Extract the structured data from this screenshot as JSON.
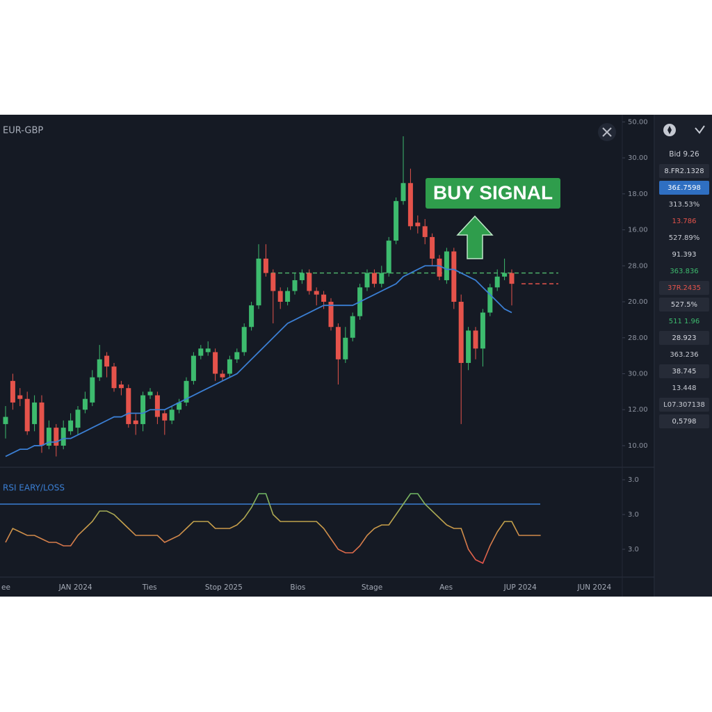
{
  "symbol": "EUR-GBP",
  "signal": "BUY SIGNAL",
  "price_chart": {
    "type": "candlestick",
    "up_color": "#3dbb6e",
    "down_color": "#e5534b",
    "ma_color": "#3b7fd4",
    "ylim": [
      -0.6,
      9.2
    ],
    "yticks": [
      {
        "value": 9,
        "label": "50.00"
      },
      {
        "value": 8,
        "label": "30.00"
      },
      {
        "value": 7,
        "label": "18.00"
      },
      {
        "value": 6,
        "label": "16.00"
      },
      {
        "value": 5,
        "label": "28.00"
      },
      {
        "value": 4,
        "label": "20.00"
      },
      {
        "value": 3,
        "label": "28.00"
      },
      {
        "value": 2,
        "label": "30.00"
      },
      {
        "value": 1,
        "label": "12.00"
      },
      {
        "value": 0,
        "label": "10.00"
      }
    ],
    "candles": [
      {
        "open": 0.6,
        "high": 1.1,
        "low": 0.2,
        "close": 0.8
      },
      {
        "open": 1.8,
        "high": 2.0,
        "low": 1.0,
        "close": 1.2
      },
      {
        "open": 1.4,
        "high": 1.6,
        "low": 1.1,
        "close": 1.3
      },
      {
        "open": 1.3,
        "high": 1.5,
        "low": 0.3,
        "close": 0.4
      },
      {
        "open": 0.6,
        "high": 1.4,
        "low": 0.4,
        "close": 1.2
      },
      {
        "open": 1.2,
        "high": 1.4,
        "low": -0.2,
        "close": 0.0
      },
      {
        "open": 0.0,
        "high": 0.7,
        "low": -0.1,
        "close": 0.5
      },
      {
        "open": 0.5,
        "high": 0.6,
        "low": -0.3,
        "close": 0.0
      },
      {
        "open": 0.0,
        "high": 0.7,
        "low": -0.1,
        "close": 0.5
      },
      {
        "open": 0.4,
        "high": 0.9,
        "low": 0.3,
        "close": 0.7
      },
      {
        "open": 0.5,
        "high": 1.1,
        "low": 0.3,
        "close": 1.0
      },
      {
        "open": 1.0,
        "high": 1.5,
        "low": 0.9,
        "close": 1.3
      },
      {
        "open": 1.2,
        "high": 2.1,
        "low": 1.1,
        "close": 1.9
      },
      {
        "open": 1.9,
        "high": 2.8,
        "low": 1.8,
        "close": 2.4
      },
      {
        "open": 2.5,
        "high": 2.6,
        "low": 1.9,
        "close": 2.2
      },
      {
        "open": 2.2,
        "high": 2.3,
        "low": 1.5,
        "close": 1.6
      },
      {
        "open": 1.7,
        "high": 1.8,
        "low": 1.4,
        "close": 1.6
      },
      {
        "open": 1.6,
        "high": 1.7,
        "low": 0.5,
        "close": 0.6
      },
      {
        "open": 0.7,
        "high": 0.9,
        "low": 0.3,
        "close": 0.6
      },
      {
        "open": 0.6,
        "high": 1.5,
        "low": 0.4,
        "close": 1.4
      },
      {
        "open": 1.4,
        "high": 1.6,
        "low": 1.3,
        "close": 1.5
      },
      {
        "open": 1.4,
        "high": 1.5,
        "low": 0.6,
        "close": 0.8
      },
      {
        "open": 0.9,
        "high": 1.0,
        "low": 0.3,
        "close": 0.7
      },
      {
        "open": 0.7,
        "high": 1.1,
        "low": 0.6,
        "close": 1.0
      },
      {
        "open": 1.0,
        "high": 1.3,
        "low": 0.9,
        "close": 1.2
      },
      {
        "open": 1.2,
        "high": 1.9,
        "low": 1.1,
        "close": 1.8
      },
      {
        "open": 1.8,
        "high": 2.6,
        "low": 1.7,
        "close": 2.5
      },
      {
        "open": 2.5,
        "high": 2.8,
        "low": 2.4,
        "close": 2.7
      },
      {
        "open": 2.6,
        "high": 2.9,
        "low": 2.5,
        "close": 2.7
      },
      {
        "open": 2.6,
        "high": 2.7,
        "low": 1.8,
        "close": 2.0
      },
      {
        "open": 2.0,
        "high": 2.1,
        "low": 1.8,
        "close": 1.9
      },
      {
        "open": 2.0,
        "high": 2.5,
        "low": 1.9,
        "close": 2.4
      },
      {
        "open": 2.4,
        "high": 2.7,
        "low": 2.3,
        "close": 2.6
      },
      {
        "open": 2.6,
        "high": 3.4,
        "low": 2.5,
        "close": 3.3
      },
      {
        "open": 3.3,
        "high": 4.0,
        "low": 3.2,
        "close": 3.9
      },
      {
        "open": 3.9,
        "high": 5.6,
        "low": 3.8,
        "close": 5.2
      },
      {
        "open": 5.2,
        "high": 5.6,
        "low": 4.7,
        "close": 4.8
      },
      {
        "open": 4.8,
        "high": 4.9,
        "low": 3.4,
        "close": 4.3
      },
      {
        "open": 4.3,
        "high": 4.4,
        "low": 3.8,
        "close": 4.0
      },
      {
        "open": 4.0,
        "high": 4.4,
        "low": 3.9,
        "close": 4.3
      },
      {
        "open": 4.3,
        "high": 4.8,
        "low": 4.2,
        "close": 4.6
      },
      {
        "open": 4.6,
        "high": 4.9,
        "low": 4.5,
        "close": 4.8
      },
      {
        "open": 4.8,
        "high": 4.9,
        "low": 4.2,
        "close": 4.3
      },
      {
        "open": 4.3,
        "high": 4.4,
        "low": 3.9,
        "close": 4.2
      },
      {
        "open": 4.2,
        "high": 4.3,
        "low": 3.8,
        "close": 4.0
      },
      {
        "open": 4.0,
        "high": 4.1,
        "low": 3.2,
        "close": 3.3
      },
      {
        "open": 3.3,
        "high": 3.4,
        "low": 1.7,
        "close": 2.4
      },
      {
        "open": 2.4,
        "high": 3.3,
        "low": 2.3,
        "close": 3.0
      },
      {
        "open": 3.0,
        "high": 3.7,
        "low": 2.9,
        "close": 3.6
      },
      {
        "open": 3.6,
        "high": 4.5,
        "low": 3.5,
        "close": 4.4
      },
      {
        "open": 4.4,
        "high": 4.9,
        "low": 4.3,
        "close": 4.8
      },
      {
        "open": 4.8,
        "high": 4.9,
        "low": 4.4,
        "close": 4.5
      },
      {
        "open": 4.5,
        "high": 5.0,
        "low": 4.4,
        "close": 4.8
      },
      {
        "open": 4.8,
        "high": 5.8,
        "low": 4.7,
        "close": 5.7
      },
      {
        "open": 5.7,
        "high": 6.9,
        "low": 5.6,
        "close": 6.8
      },
      {
        "open": 6.8,
        "high": 8.6,
        "low": 6.7,
        "close": 7.3
      },
      {
        "open": 7.3,
        "high": 7.7,
        "low": 6.0,
        "close": 6.1
      },
      {
        "open": 6.2,
        "high": 6.4,
        "low": 5.9,
        "close": 6.1
      },
      {
        "open": 6.1,
        "high": 6.3,
        "low": 5.6,
        "close": 5.8
      },
      {
        "open": 5.8,
        "high": 5.9,
        "low": 5.0,
        "close": 5.2
      },
      {
        "open": 5.2,
        "high": 5.3,
        "low": 4.6,
        "close": 4.7
      },
      {
        "open": 4.6,
        "high": 5.5,
        "low": 4.5,
        "close": 5.4
      },
      {
        "open": 5.4,
        "high": 5.5,
        "low": 3.8,
        "close": 4.0
      },
      {
        "open": 4.0,
        "high": 4.2,
        "low": 0.6,
        "close": 2.3
      },
      {
        "open": 2.3,
        "high": 3.3,
        "low": 2.1,
        "close": 3.2
      },
      {
        "open": 3.2,
        "high": 3.3,
        "low": 2.4,
        "close": 2.7
      },
      {
        "open": 2.7,
        "high": 3.8,
        "low": 2.2,
        "close": 3.7
      },
      {
        "open": 3.7,
        "high": 4.5,
        "low": 3.6,
        "close": 4.4
      },
      {
        "open": 4.4,
        "high": 4.9,
        "low": 4.3,
        "close": 4.7
      },
      {
        "open": 4.7,
        "high": 5.2,
        "low": 4.6,
        "close": 4.8
      },
      {
        "open": 4.8,
        "high": 4.9,
        "low": 3.9,
        "close": 4.5
      }
    ],
    "ma": [
      -0.3,
      -0.2,
      -0.1,
      -0.1,
      0.0,
      0.0,
      0.1,
      0.1,
      0.2,
      0.2,
      0.3,
      0.4,
      0.5,
      0.6,
      0.7,
      0.8,
      0.8,
      0.9,
      0.9,
      0.9,
      1.0,
      1.0,
      1.0,
      1.1,
      1.2,
      1.3,
      1.4,
      1.5,
      1.6,
      1.7,
      1.8,
      1.9,
      2.0,
      2.2,
      2.4,
      2.6,
      2.8,
      3.0,
      3.2,
      3.4,
      3.5,
      3.6,
      3.7,
      3.8,
      3.9,
      3.9,
      3.9,
      3.9,
      3.9,
      4.0,
      4.1,
      4.2,
      4.3,
      4.4,
      4.5,
      4.7,
      4.8,
      4.9,
      5.0,
      5.0,
      5.0,
      4.9,
      4.9,
      4.8,
      4.7,
      4.6,
      4.4,
      4.2,
      4.0,
      3.8,
      3.7
    ],
    "levels": [
      {
        "value": 4.8,
        "color": "#4caf6a"
      },
      {
        "value": 4.5,
        "color": "#e5534b"
      }
    ]
  },
  "rsi": {
    "type": "line",
    "title": "RSI EARY/LOSS",
    "ylim": [
      -0.8,
      2.3
    ],
    "yticks": [
      {
        "value": 2,
        "label": "3.0"
      },
      {
        "value": 1,
        "label": "3.0"
      },
      {
        "value": 0,
        "label": "3.0"
      }
    ],
    "level": 1.3,
    "level_color": "#3b7fd4",
    "values": [
      0.2,
      0.6,
      0.5,
      0.4,
      0.4,
      0.3,
      0.2,
      0.2,
      0.1,
      0.1,
      0.4,
      0.6,
      0.8,
      1.1,
      1.1,
      1.0,
      0.8,
      0.6,
      0.4,
      0.4,
      0.4,
      0.4,
      0.2,
      0.3,
      0.4,
      0.6,
      0.8,
      0.8,
      0.8,
      0.6,
      0.6,
      0.6,
      0.7,
      0.9,
      1.2,
      1.6,
      1.6,
      1.0,
      0.8,
      0.8,
      0.8,
      0.8,
      0.8,
      0.8,
      0.6,
      0.3,
      0.0,
      -0.1,
      -0.1,
      0.1,
      0.4,
      0.6,
      0.7,
      0.7,
      1.0,
      1.3,
      1.6,
      1.6,
      1.3,
      1.1,
      0.9,
      0.7,
      0.6,
      0.6,
      0.0,
      -0.3,
      -0.4,
      0.1,
      0.5,
      0.8,
      0.8,
      0.4,
      0.4,
      0.4,
      0.4
    ]
  },
  "xticks": [
    "ee",
    "JAN 2024",
    "Ties",
    "Stop 2025",
    "Bios",
    "Stage",
    "Aes",
    "JUP 2024",
    "JUN 2024"
  ],
  "watchlist": {
    "header": "Bid 9.26",
    "items": [
      {
        "text": "8.FR2.1328",
        "color": "#d6d9e0",
        "box": true
      },
      {
        "text": "36£.7598",
        "color": "#ffffff",
        "box": true,
        "highlight": true
      },
      {
        "text": "313.53%",
        "color": "#c9ccd4",
        "box": false
      },
      {
        "text": "13.786",
        "color": "#e5534b",
        "box": false
      },
      {
        "text": "527.89%",
        "color": "#c9ccd4",
        "box": false
      },
      {
        "text": "91.393",
        "color": "#d6d9e0",
        "box": false
      },
      {
        "text": "363.836",
        "color": "#3dbb6e",
        "box": false
      },
      {
        "text": "37R.2435",
        "color": "#e5534b",
        "box": true
      },
      {
        "text": "527.5%",
        "color": "#d6d9e0",
        "box": true
      },
      {
        "text": "511 1.96",
        "color": "#3dbb6e",
        "box": false
      },
      {
        "text": "28.923",
        "color": "#d6d9e0",
        "box": true
      },
      {
        "text": "363.236",
        "color": "#c9ccd4",
        "box": false
      },
      {
        "text": "38.745",
        "color": "#d6d9e0",
        "box": true
      },
      {
        "text": "13.448",
        "color": "#c9ccd4",
        "box": false
      },
      {
        "text": "L07.307138",
        "color": "#c9ccd4",
        "box": true
      },
      {
        "text": "0,5798",
        "color": "#d6d9e0",
        "box": true
      }
    ]
  }
}
